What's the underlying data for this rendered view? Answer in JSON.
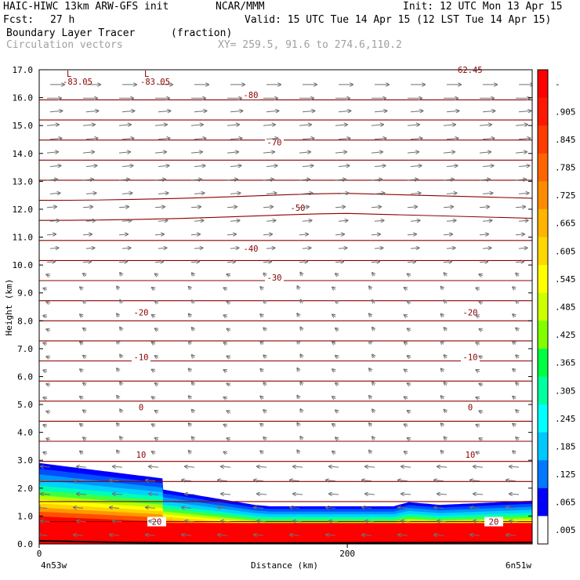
{
  "header": {
    "model": "HAIC-HIWC 13km ARW-GFS init",
    "org": "NCAR/MMM",
    "init": "Init: 12 UTC Mon 13 Apr 15",
    "fcst_label": "Fcst:",
    "fcst_value": "27 h",
    "valid": "Valid: 15 UTC Tue 14 Apr 15 (12 LST Tue 14 Apr 15)",
    "field": "Boundary Layer Tracer",
    "field_units": "(fraction)",
    "vectors": "Circulation vectors",
    "xy": "XY= 259.5, 91.6 to 274.6,110.2"
  },
  "chart_data": {
    "type": "heatmap",
    "ylabel": "Height (km)",
    "xlabel": "Distance (km)",
    "x_ticks": [
      "0",
      "200"
    ],
    "x_end_labels": [
      "4n53w",
      "6n51w"
    ],
    "x_range_km": [
      0,
      320
    ],
    "ylim": [
      0,
      17
    ],
    "y_ticks": [
      "0.0",
      "1.0",
      "2.0",
      "3.0",
      "4.0",
      "5.0",
      "6.0",
      "7.0",
      "8.0",
      "9.0",
      "10.0",
      "11.0",
      "12.0",
      "13.0",
      "14.0",
      "15.0",
      "16.0",
      "17.0"
    ],
    "colorbar": {
      "labels": [
        "-",
        ".905",
        ".845",
        ".785",
        ".725",
        ".665",
        ".605",
        ".545",
        ".485",
        ".425",
        ".365",
        ".305",
        ".245",
        ".185",
        ".125",
        ".065",
        ".005"
      ],
      "colors": [
        "#ff0000",
        "#ff1800",
        "#ff3c00",
        "#ff6400",
        "#ff8c00",
        "#ffb400",
        "#ffd700",
        "#ffff00",
        "#ccff00",
        "#80ff00",
        "#00ff40",
        "#00ffa0",
        "#00ffff",
        "#00c8ff",
        "#0078ff",
        "#0000ff",
        "#ffffff"
      ]
    },
    "temperature_contours": [
      {
        "label": "-80",
        "height_km": 16.1
      },
      {
        "label": "-70",
        "height_km": 14.4
      },
      {
        "label": "-50",
        "height_km": 12.05
      },
      {
        "label": "-40",
        "height_km": 10.6
      },
      {
        "label": "-30",
        "height_km": 9.55
      },
      {
        "label": "-20",
        "height_km": 8.3
      },
      {
        "label": "-10",
        "height_km": 6.7
      },
      {
        "label": "0",
        "height_km": 4.9
      },
      {
        "label": "10",
        "height_km": 3.2
      },
      {
        "label": "20",
        "height_km": 0.8
      }
    ],
    "low_markers": [
      {
        "letter": "L",
        "value": "-83.05"
      },
      {
        "letter": "L",
        "value": "-83.05"
      }
    ],
    "top_value": "62.45",
    "tracer_top_km": {
      "x_km": [
        0,
        80,
        80.5,
        140,
        150,
        230,
        240,
        260,
        320
      ],
      "top_km": [
        2.9,
        2.35,
        1.95,
        1.4,
        1.35,
        1.35,
        1.5,
        1.4,
        1.55
      ]
    }
  }
}
